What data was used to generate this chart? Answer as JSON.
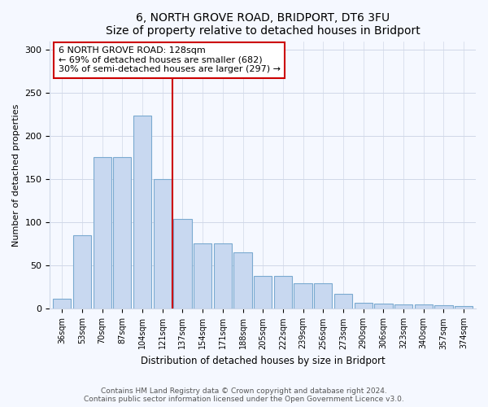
{
  "title": "6, NORTH GROVE ROAD, BRIDPORT, DT6 3FU",
  "subtitle": "Size of property relative to detached houses in Bridport",
  "xlabel": "Distribution of detached houses by size in Bridport",
  "ylabel": "Number of detached properties",
  "categories": [
    "36sqm",
    "53sqm",
    "70sqm",
    "87sqm",
    "104sqm",
    "121sqm",
    "137sqm",
    "154sqm",
    "171sqm",
    "188sqm",
    "205sqm",
    "222sqm",
    "239sqm",
    "256sqm",
    "273sqm",
    "290sqm",
    "306sqm",
    "323sqm",
    "340sqm",
    "357sqm",
    "374sqm"
  ],
  "values": [
    12,
    85,
    176,
    176,
    224,
    150,
    104,
    76,
    76,
    65,
    38,
    38,
    30,
    30,
    17,
    7,
    6,
    5,
    5,
    4,
    3
  ],
  "bar_color": "#c8d8f0",
  "bar_edge_color": "#7aaad0",
  "vline_x": 6.0,
  "vline_color": "#cc0000",
  "annotation_text": "6 NORTH GROVE ROAD: 128sqm\n← 69% of detached houses are smaller (682)\n30% of semi-detached houses are larger (297) →",
  "annotation_box_color": "#ffffff",
  "annotation_box_edge_color": "#cc0000",
  "ylim": [
    0,
    310
  ],
  "yticks": [
    0,
    50,
    100,
    150,
    200,
    250,
    300
  ],
  "footer_text": "Contains HM Land Registry data © Crown copyright and database right 2024.\nContains public sector information licensed under the Open Government Licence v3.0.",
  "bg_color": "#f5f8ff",
  "plot_bg_color": "#f5f8ff",
  "grid_color": "#d0d8e8"
}
